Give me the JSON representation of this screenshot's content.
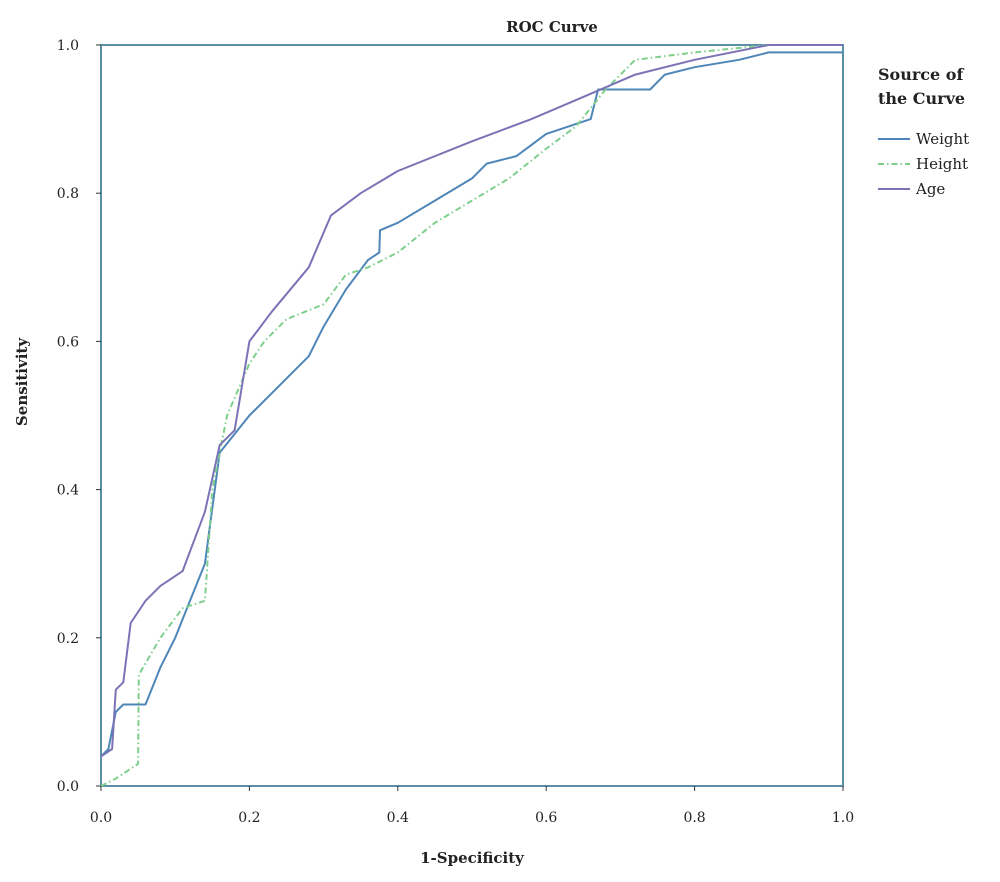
{
  "chart_data": {
    "type": "line",
    "title": "ROC Curve",
    "xlabel": "1-Specificity",
    "ylabel": "Sensitivity",
    "xlim": [
      0,
      1
    ],
    "ylim": [
      0,
      1
    ],
    "x_ticks": [
      "0.0",
      "0.2",
      "0.4",
      "0.6",
      "0.8",
      "1.0"
    ],
    "y_ticks": [
      "0.0",
      "0.2",
      "0.4",
      "0.6",
      "0.8",
      "1.0"
    ],
    "grid": false,
    "legend": {
      "title_lines": [
        "Source of",
        "the Curve"
      ],
      "placement": "right"
    },
    "series": [
      {
        "name": "Weight",
        "color": "#4f86b8",
        "dash": "solid",
        "points": [
          [
            0,
            0.04
          ],
          [
            0.01,
            0.05
          ],
          [
            0.02,
            0.1
          ],
          [
            0.03,
            0.11
          ],
          [
            0.05,
            0.11
          ],
          [
            0.06,
            0.11
          ],
          [
            0.08,
            0.16
          ],
          [
            0.1,
            0.2
          ],
          [
            0.12,
            0.25
          ],
          [
            0.14,
            0.3
          ],
          [
            0.16,
            0.45
          ],
          [
            0.2,
            0.5
          ],
          [
            0.24,
            0.54
          ],
          [
            0.28,
            0.58
          ],
          [
            0.3,
            0.62
          ],
          [
            0.33,
            0.67
          ],
          [
            0.36,
            0.71
          ],
          [
            0.375,
            0.72
          ],
          [
            0.376,
            0.75
          ],
          [
            0.4,
            0.76
          ],
          [
            0.45,
            0.79
          ],
          [
            0.5,
            0.82
          ],
          [
            0.52,
            0.84
          ],
          [
            0.56,
            0.85
          ],
          [
            0.6,
            0.88
          ],
          [
            0.66,
            0.9
          ],
          [
            0.67,
            0.94
          ],
          [
            0.72,
            0.94
          ],
          [
            0.74,
            0.94
          ],
          [
            0.76,
            0.96
          ],
          [
            0.8,
            0.97
          ],
          [
            0.86,
            0.98
          ],
          [
            0.9,
            0.99
          ],
          [
            0.95,
            0.99
          ],
          [
            1,
            0.99
          ]
        ]
      },
      {
        "name": "Height",
        "color": "#7fcf8c",
        "dash": "dashdot",
        "points": [
          [
            0,
            0
          ],
          [
            0.02,
            0.01
          ],
          [
            0.05,
            0.03
          ],
          [
            0.051,
            0.15
          ],
          [
            0.08,
            0.2
          ],
          [
            0.11,
            0.24
          ],
          [
            0.14,
            0.25
          ],
          [
            0.15,
            0.4
          ],
          [
            0.17,
            0.5
          ],
          [
            0.2,
            0.57
          ],
          [
            0.22,
            0.6
          ],
          [
            0.25,
            0.63
          ],
          [
            0.3,
            0.65
          ],
          [
            0.33,
            0.69
          ],
          [
            0.36,
            0.7
          ],
          [
            0.4,
            0.72
          ],
          [
            0.45,
            0.76
          ],
          [
            0.5,
            0.79
          ],
          [
            0.55,
            0.82
          ],
          [
            0.6,
            0.86
          ],
          [
            0.64,
            0.89
          ],
          [
            0.68,
            0.94
          ],
          [
            0.72,
            0.98
          ],
          [
            0.8,
            0.99
          ],
          [
            0.9,
            1.0
          ],
          [
            1,
            1.0
          ]
        ]
      },
      {
        "name": "Age",
        "color": "#7a74b6",
        "dash": "solid",
        "points": [
          [
            0,
            0.04
          ],
          [
            0.015,
            0.05
          ],
          [
            0.02,
            0.13
          ],
          [
            0.03,
            0.14
          ],
          [
            0.04,
            0.22
          ],
          [
            0.06,
            0.25
          ],
          [
            0.08,
            0.27
          ],
          [
            0.11,
            0.29
          ],
          [
            0.14,
            0.37
          ],
          [
            0.16,
            0.46
          ],
          [
            0.18,
            0.48
          ],
          [
            0.2,
            0.6
          ],
          [
            0.23,
            0.64
          ],
          [
            0.28,
            0.7
          ],
          [
            0.31,
            0.77
          ],
          [
            0.35,
            0.8
          ],
          [
            0.4,
            0.83
          ],
          [
            0.5,
            0.87
          ],
          [
            0.58,
            0.9
          ],
          [
            0.65,
            0.93
          ],
          [
            0.72,
            0.96
          ],
          [
            0.8,
            0.98
          ],
          [
            0.9,
            1.0
          ],
          [
            1,
            1.0
          ]
        ]
      }
    ]
  }
}
